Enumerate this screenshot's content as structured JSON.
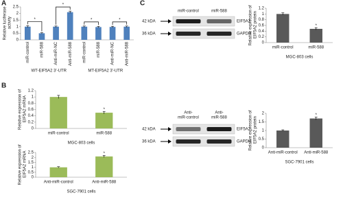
{
  "panels": [
    "A",
    "B",
    "C"
  ],
  "chart_data": [
    {
      "type": "bar",
      "ylabel": "Relative luciferase activity",
      "categories": [
        "miR-control",
        "miR-588",
        "Anti-miR-NC",
        "Anti-miR-588",
        "miR-control",
        "miR-588",
        "Anti-miR-NC",
        "Anti-miR-588"
      ],
      "values": [
        1.0,
        0.5,
        1.0,
        2.1,
        1.0,
        0.97,
        0.98,
        1.0
      ],
      "errors": [
        0.07,
        0.04,
        0.05,
        0.08,
        0.05,
        0.05,
        0.05,
        0.05
      ],
      "groups": [
        "WT-EIF5A2 3'-UTR",
        "MT-EIF5A2 3'-UTR"
      ],
      "annotations": [
        "*",
        "*",
        "*",
        "*"
      ],
      "color": "#4f81bd",
      "ylim": [
        0,
        2.5
      ],
      "yticks": [
        0,
        0.5,
        1,
        1.5,
        2,
        2.5
      ]
    },
    {
      "type": "bar",
      "ylabel": "Relative expression of EIF5A2 mRNA",
      "xlabel": "MGC-803 cells",
      "categories": [
        "miR-control",
        "miR-588"
      ],
      "values": [
        1.0,
        0.5
      ],
      "errors": [
        0.05,
        0.04
      ],
      "annotations": [
        "*"
      ],
      "color": "#9bbb59",
      "ylim": [
        0,
        1.2
      ],
      "yticks": [
        0,
        0.2,
        0.4,
        0.6,
        0.8,
        1,
        1.2
      ]
    },
    {
      "type": "bar",
      "ylabel": "Relative expression of EIF5A2 mRNA",
      "xlabel": "SGC-7901 cells",
      "categories": [
        "Anti-miR-control",
        "Anti-miR-588"
      ],
      "values": [
        1.0,
        2.1
      ],
      "errors": [
        0.06,
        0.1
      ],
      "annotations": [
        "*"
      ],
      "color": "#9bbb59",
      "ylim": [
        0,
        2.5
      ],
      "yticks": [
        0,
        0.5,
        1,
        1.5,
        2,
        2.5
      ]
    },
    {
      "type": "bar",
      "ylabel": "Relative expression of EIF5A2 protein",
      "xlabel": "MGC-803 cells",
      "categories": [
        "miR-control",
        "miR-588"
      ],
      "values": [
        1.0,
        0.48
      ],
      "errors": [
        0.04,
        0.04
      ],
      "annotations": [
        "*"
      ],
      "color": "#595959",
      "ylim": [
        0,
        1.2
      ],
      "yticks": [
        0,
        0.2,
        0.4,
        0.6,
        0.8,
        1,
        1.2
      ]
    },
    {
      "type": "bar",
      "ylabel": "Relative expression of EIF5A2 protein",
      "xlabel": "SGC-7901 cells",
      "categories": [
        "Anti-miR-control",
        "Anti-miR-588"
      ],
      "values": [
        1.0,
        1.7
      ],
      "errors": [
        0.04,
        0.08
      ],
      "annotations": [
        "*"
      ],
      "color": "#595959",
      "ylim": [
        0,
        2
      ],
      "yticks": [
        0,
        0.5,
        1,
        1.5,
        2
      ]
    }
  ],
  "blots": [
    {
      "lanes": [
        [
          "miR-control"
        ],
        [
          "miR-588"
        ]
      ],
      "markers": [
        "42 kDA",
        "36 kDA"
      ],
      "proteins": [
        "EIF5A2",
        "GAPDH"
      ]
    },
    {
      "lanes": [
        [
          "Anti-",
          "miR-control"
        ],
        [
          "Anti-",
          "miR-588"
        ]
      ],
      "markers": [
        "42 kDA",
        "36 kDA"
      ],
      "proteins": [
        "EIF5A2",
        "GAPDH"
      ]
    }
  ]
}
